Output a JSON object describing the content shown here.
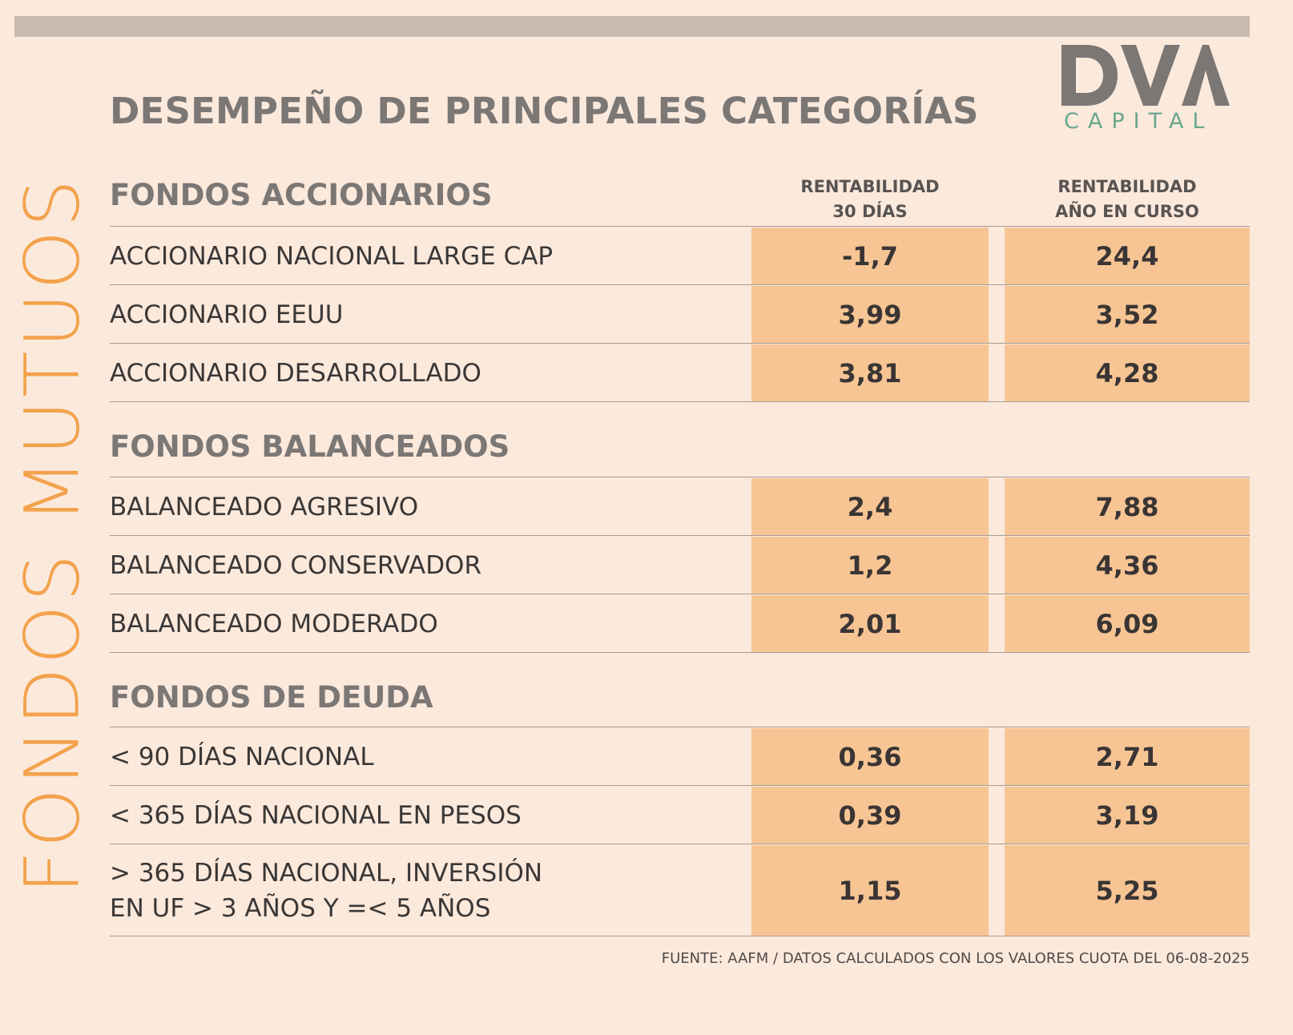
{
  "vertical_title": "FONDOS MUTUOS",
  "title": "DESEMPEÑO DE PRINCIPALES CATEGORÍAS",
  "logo": {
    "wordmark": "DVA",
    "subtitle": "CAPITAL"
  },
  "columns": [
    {
      "line1": "RENTABILIDAD",
      "line2": "30 DÍAS"
    },
    {
      "line1": "RENTABILIDAD",
      "line2": "AÑO EN CURSO"
    }
  ],
  "colors": {
    "background": "#fbe9dc",
    "cell_fill": "#f7c594",
    "accent_orange": "#f3a24c",
    "logo_gray": "#7b7775",
    "logo_green": "#6aa78f"
  },
  "chart_data": {
    "type": "table",
    "columns": [
      "RENTABILIDAD 30 DÍAS",
      "RENTABILIDAD AÑO EN CURSO"
    ],
    "sections": [
      {
        "title": "FONDOS ACCIONARIOS",
        "rows": [
          {
            "label": "ACCIONARIO NACIONAL LARGE CAP",
            "r30": "-1,7",
            "ytd": "24,4"
          },
          {
            "label": "ACCIONARIO EEUU",
            "r30": "3,99",
            "ytd": "3,52"
          },
          {
            "label": "ACCIONARIO DESARROLLADO",
            "r30": "3,81",
            "ytd": "4,28"
          }
        ]
      },
      {
        "title": "FONDOS BALANCEADOS",
        "rows": [
          {
            "label": "BALANCEADO AGRESIVO",
            "r30": "2,4",
            "ytd": "7,88"
          },
          {
            "label": "BALANCEADO CONSERVADOR",
            "r30": "1,2",
            "ytd": "4,36"
          },
          {
            "label": "BALANCEADO MODERADO",
            "r30": "2,01",
            "ytd": "6,09"
          }
        ]
      },
      {
        "title": "FONDOS DE DEUDA",
        "rows": [
          {
            "label": "< 90 DÍAS NACIONAL",
            "r30": "0,36",
            "ytd": "2,71"
          },
          {
            "label": "< 365 DÍAS NACIONAL EN PESOS",
            "r30": "0,39",
            "ytd": "3,19"
          },
          {
            "label": "> 365 DÍAS NACIONAL, INVERSIÓN",
            "label2": "EN UF > 3 AÑOS Y =< 5 AÑOS",
            "r30": "1,15",
            "ytd": "5,25"
          }
        ]
      }
    ]
  },
  "source": "FUENTE: AAFM / DATOS CALCULADOS CON LOS VALORES CUOTA DEL 06-08-2025"
}
